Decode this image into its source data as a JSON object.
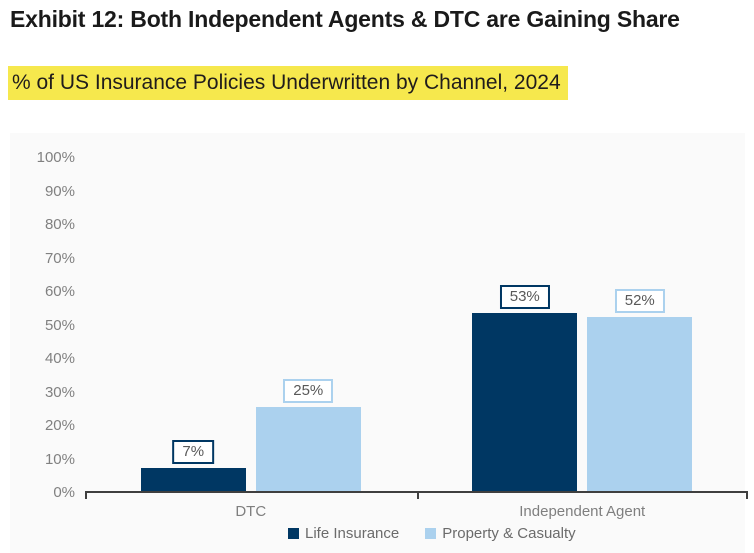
{
  "page": {
    "title": "Exhibit 12: Both Independent Agents & DTC are Gaining Share",
    "subtitle": "% of US Insurance Policies Underwritten by Channel, 2024"
  },
  "colors": {
    "title_text": "#1a1a1a",
    "subtitle_highlight": "#f6e84d",
    "life_insurance": "#003763",
    "property_casualty": "#abd1ee",
    "axis_line": "#3f3f3f",
    "tick_text": "#808080",
    "value_label_text": "#595959",
    "panel_background": "#fafafa"
  },
  "chart_data": {
    "type": "bar",
    "title": "Exhibit 12: Both Independent Agents & DTC are Gaining Share",
    "subtitle": "% of US Insurance Policies Underwritten by Channel, 2024",
    "categories": [
      "DTC",
      "Independent Agent"
    ],
    "series": [
      {
        "name": "Life Insurance",
        "color": "#003763",
        "values": [
          7,
          53
        ],
        "value_labels": [
          "7%",
          "53%"
        ]
      },
      {
        "name": "Property & Casualty",
        "color": "#abd1ee",
        "values": [
          25,
          52
        ],
        "value_labels": [
          "25%",
          "52%"
        ]
      }
    ],
    "xlabel": "",
    "ylabel": "",
    "ylim": [
      0,
      100
    ],
    "y_tick_step": 10,
    "y_tick_labels": [
      "0%",
      "10%",
      "20%",
      "30%",
      "40%",
      "50%",
      "60%",
      "70%",
      "80%",
      "90%",
      "100%"
    ],
    "grid": false,
    "value_labels_shown": true,
    "legend_position": "bottom-center"
  }
}
